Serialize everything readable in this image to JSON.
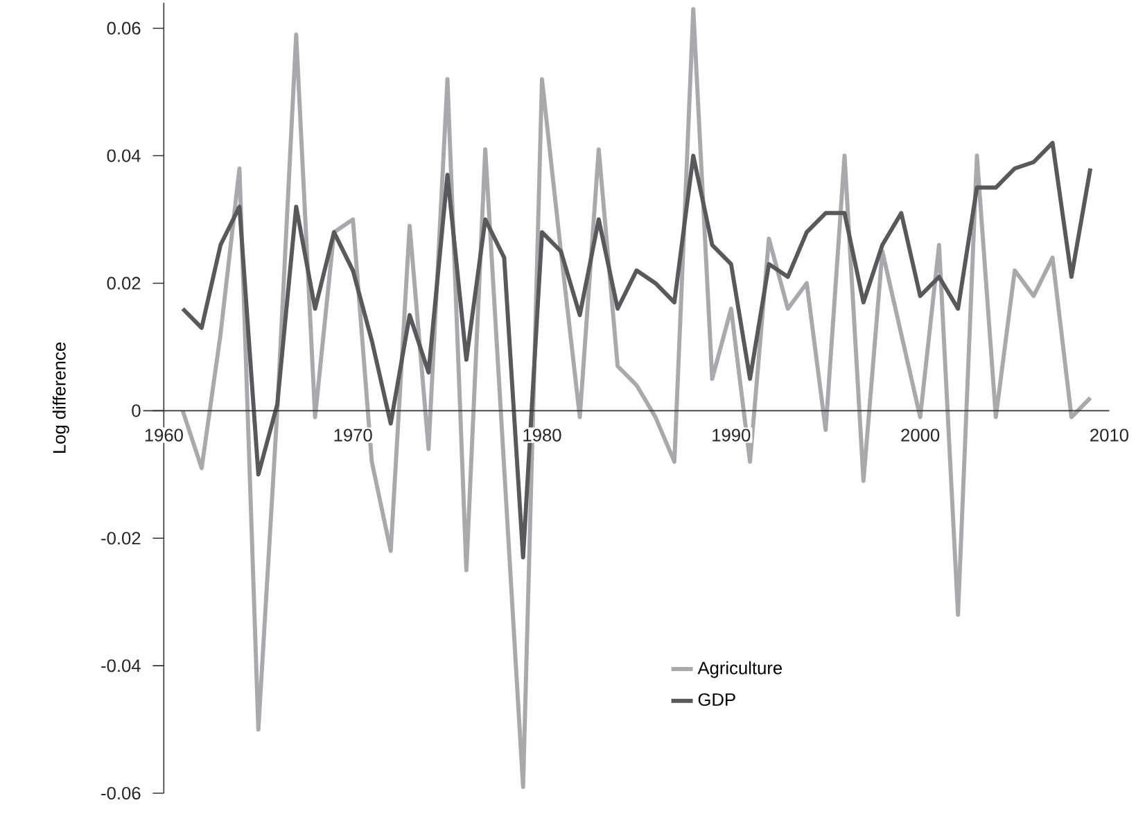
{
  "chart_data": {
    "type": "line",
    "ylabel": "Log difference",
    "x": [
      1961,
      1962,
      1963,
      1964,
      1965,
      1966,
      1967,
      1968,
      1969,
      1970,
      1971,
      1972,
      1973,
      1974,
      1975,
      1976,
      1977,
      1978,
      1979,
      1980,
      1981,
      1982,
      1983,
      1984,
      1985,
      1986,
      1987,
      1988,
      1989,
      1990,
      1991,
      1992,
      1993,
      1994,
      1995,
      1996,
      1997,
      1998,
      1999,
      2000,
      2001,
      2002,
      2003,
      2004,
      2005,
      2006,
      2007,
      2008,
      2009
    ],
    "series": [
      {
        "name": "Agriculture",
        "color": "#a7a9ac",
        "values": [
          0.0,
          -0.009,
          0.012,
          0.038,
          -0.05,
          0.0,
          0.059,
          -0.001,
          0.028,
          0.03,
          -0.008,
          -0.022,
          0.029,
          -0.006,
          0.052,
          -0.025,
          0.041,
          -0.009,
          -0.059,
          0.052,
          0.025,
          -0.001,
          0.041,
          0.007,
          0.004,
          -0.001,
          -0.008,
          0.063,
          0.005,
          0.016,
          -0.008,
          0.027,
          0.016,
          0.02,
          -0.003,
          0.04,
          -0.011,
          0.025,
          0.012,
          -0.001,
          0.026,
          -0.032,
          0.04,
          -0.001,
          0.022,
          0.018,
          0.024,
          -0.001,
          0.002
        ]
      },
      {
        "name": "GDP",
        "color": "#58595b",
        "values": [
          0.016,
          0.013,
          0.026,
          0.032,
          -0.01,
          0.001,
          0.032,
          0.016,
          0.028,
          0.022,
          0.011,
          -0.002,
          0.015,
          0.006,
          0.037,
          0.008,
          0.03,
          0.024,
          -0.023,
          0.028,
          0.025,
          0.015,
          0.03,
          0.016,
          0.022,
          0.02,
          0.017,
          0.04,
          0.026,
          0.023,
          0.005,
          0.023,
          0.021,
          0.028,
          0.031,
          0.031,
          0.017,
          0.026,
          0.031,
          0.018,
          0.021,
          0.016,
          0.035,
          0.035,
          0.038,
          0.039,
          0.042,
          0.021,
          0.038
        ]
      }
    ],
    "xlim": [
      1960,
      2010
    ],
    "xticks": [
      1960,
      1970,
      1980,
      1990,
      2000,
      2010
    ],
    "ylim": [
      -0.06,
      0.064
    ],
    "yticks": [
      -0.06,
      -0.04,
      -0.02,
      0,
      0.02,
      0.04,
      0.06
    ],
    "legend": "bottom right",
    "line_style": "solid",
    "marker": "none",
    "grid": false
  }
}
